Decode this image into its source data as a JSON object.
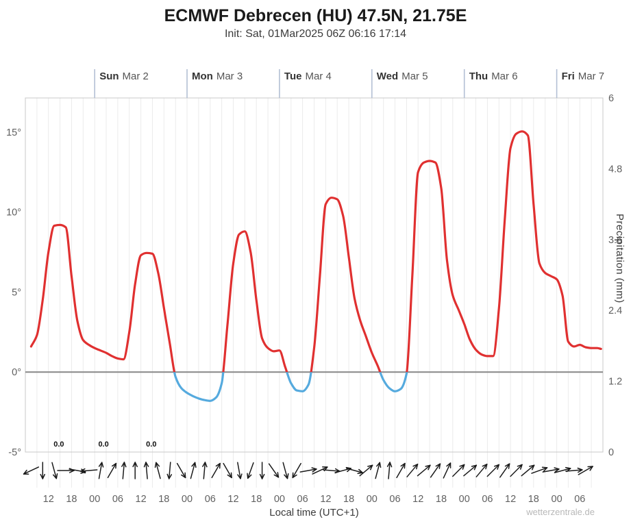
{
  "header": {
    "title": "ECMWF Debrecen (HU) 47.5N, 21.75E",
    "subtitle": "Init: Sat, 01Mar2025 06Z 06:16 17:14"
  },
  "watermark": "wetterzentrale.de",
  "colors": {
    "temp_above_zero": "#e03030",
    "temp_below_zero": "#55aade",
    "zero_line": "#878787",
    "grid": "#ebebeb",
    "frame": "#c8c8c8",
    "day_tick": "#b3bfd4",
    "day_text": "#333333",
    "date_text": "#555555",
    "axis_text": "#606060",
    "wind": "#1a1a1a",
    "annotation_text": "#111111"
  },
  "chart_data": {
    "type": "line",
    "title": "ECMWF Debrecen (HU) 47.5N, 21.75E",
    "subtitle": "Init: Sat, 01Mar2025 06Z 06:16 17:14",
    "x_axis": {
      "label": "Local time (UTC+1)",
      "hours_domain": [
        6,
        156
      ],
      "tick_hours": [
        12,
        18,
        24,
        30,
        36,
        42,
        48,
        54,
        60,
        66,
        72,
        78,
        84,
        90,
        96,
        102,
        108,
        114,
        120,
        126,
        132,
        138,
        144,
        150
      ],
      "tick_labels": [
        "12",
        "18",
        "00",
        "06",
        "12",
        "18",
        "00",
        "06",
        "12",
        "18",
        "00",
        "06",
        "12",
        "18",
        "00",
        "06",
        "12",
        "18",
        "00",
        "06",
        "12",
        "18",
        "00",
        "06"
      ]
    },
    "day_headers": [
      {
        "day": "Sun",
        "date": "Mar 2",
        "hour": 24
      },
      {
        "day": "Mon",
        "date": "Mar 3",
        "hour": 48
      },
      {
        "day": "Tue",
        "date": "Mar 4",
        "hour": 72
      },
      {
        "day": "Wed",
        "date": "Mar 5",
        "hour": 96
      },
      {
        "day": "Thu",
        "date": "Mar 6",
        "hour": 120
      },
      {
        "day": "Fri",
        "date": "Mar 7",
        "hour": 144
      }
    ],
    "y_temp": {
      "unit": "°C",
      "domain": [
        -5,
        17.14
      ],
      "tick_values": [
        15,
        10,
        5,
        0,
        -5
      ],
      "tick_labels": [
        "15°",
        "10°",
        "5°",
        "0°",
        "-5°"
      ],
      "zero_reference": 0
    },
    "y_precip": {
      "label": "Precipitation (mm)",
      "unit": "mm",
      "domain": [
        0,
        6
      ],
      "tick_values": [
        6,
        4.8,
        3.6,
        2.4,
        1.2,
        0
      ],
      "tick_labels": [
        "6",
        "4.8",
        "3.6",
        "2.4",
        "1.2",
        "0"
      ]
    },
    "series": [
      {
        "name": "2m temperature",
        "unit": "°C",
        "x_hours": [
          7.5,
          9,
          10.5,
          12,
          13.5,
          15,
          16.5,
          18,
          19.5,
          21,
          22.5,
          24,
          25.5,
          27,
          28.5,
          30,
          31.5,
          33,
          34.5,
          36,
          37.5,
          39,
          40.5,
          42,
          43.5,
          45,
          46.5,
          48,
          49.5,
          51,
          52.5,
          54,
          55.5,
          57,
          58.5,
          60,
          61.5,
          63,
          64.5,
          66,
          67.5,
          69,
          70.5,
          72,
          73.5,
          75,
          76.5,
          78,
          79.5,
          81,
          82.5,
          84,
          85.5,
          87,
          88.5,
          90,
          91.5,
          93,
          94.5,
          96,
          97.5,
          99,
          100.5,
          102,
          103.5,
          105,
          106.5,
          108,
          109.5,
          111,
          112.5,
          114,
          115.5,
          117,
          118.5,
          120,
          121.5,
          123,
          124.5,
          126,
          127.5,
          129,
          130.5,
          132,
          133.5,
          135,
          136.5,
          138,
          139.5,
          141,
          142.5,
          144,
          145.5,
          147,
          148.5,
          150,
          151.5,
          153,
          154.5,
          155.5
        ],
        "values": [
          1.6,
          2.3,
          4.5,
          7.5,
          9.15,
          9.2,
          9.05,
          6.0,
          3.2,
          2.0,
          1.7,
          1.5,
          1.35,
          1.2,
          1.0,
          0.85,
          0.8,
          2.5,
          5.5,
          7.3,
          7.45,
          7.4,
          6.2,
          4.0,
          1.8,
          -0.3,
          -1.0,
          -1.3,
          -1.5,
          -1.65,
          -1.75,
          -1.8,
          -1.6,
          -0.7,
          3.0,
          6.8,
          8.6,
          8.8,
          7.5,
          4.5,
          2.1,
          1.5,
          1.3,
          1.35,
          0.3,
          -0.7,
          -1.15,
          -1.2,
          -0.8,
          1.5,
          6.0,
          10.5,
          10.9,
          10.8,
          9.8,
          7.2,
          4.6,
          3.2,
          2.2,
          1.2,
          0.4,
          -0.5,
          -1.0,
          -1.2,
          -1.05,
          -0.1,
          6.0,
          12.5,
          13.1,
          13.2,
          13.1,
          11.5,
          7.0,
          4.8,
          3.9,
          3.0,
          2.0,
          1.4,
          1.1,
          1.0,
          1.0,
          4.0,
          9.5,
          14.0,
          14.9,
          15.05,
          14.8,
          10.5,
          6.8,
          6.2,
          6.0,
          5.8,
          4.8,
          1.9,
          1.6,
          1.7,
          1.55,
          1.5,
          1.5,
          1.45
        ]
      }
    ],
    "precip_annotations": [
      {
        "hour": 14.7,
        "text": "0.0"
      },
      {
        "hour": 26.3,
        "text": "0.0"
      },
      {
        "hour": 38.7,
        "text": "0.0"
      }
    ],
    "wind_arrows": {
      "start_hour": 7.5,
      "step_hours": 3,
      "angles_deg": [
        205,
        270,
        285,
        0,
        350,
        185,
        80,
        60,
        85,
        90,
        95,
        105,
        265,
        300,
        75,
        85,
        60,
        300,
        280,
        250,
        270,
        305,
        285,
        240,
        10,
        25,
        355,
        15,
        345,
        40,
        75,
        85,
        60,
        50,
        40,
        55,
        65,
        45,
        40,
        50,
        45,
        55,
        45,
        40,
        20,
        10,
        15,
        5,
        30
      ]
    }
  }
}
